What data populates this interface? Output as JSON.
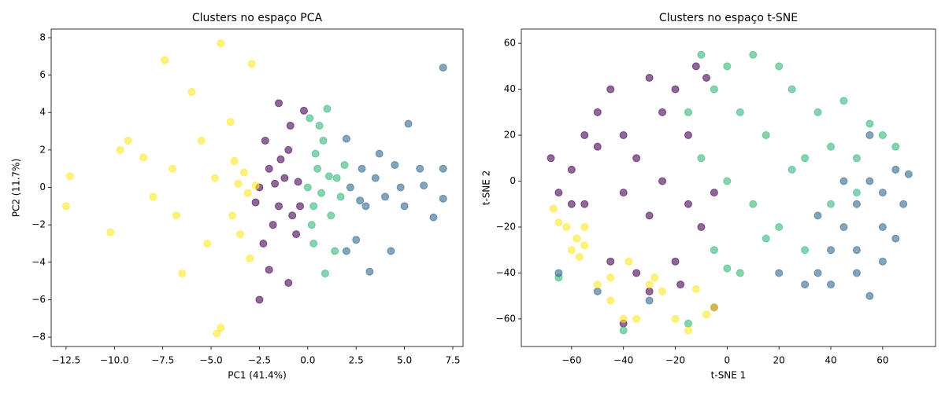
{
  "chart_data": [
    {
      "type": "scatter",
      "title": "Clusters no espaço PCA",
      "xlabel": "PC1 (41.4%)",
      "ylabel": "PC2 (11.7%)",
      "xlim": [
        -13.27,
        8.03
      ],
      "ylim": [
        -8.5,
        8.46
      ],
      "xticks": [
        {
          "value": -12.5,
          "label": "−12.5"
        },
        {
          "value": -10,
          "label": "−10.0"
        },
        {
          "value": -7.5,
          "label": "−7.5"
        },
        {
          "value": -5,
          "label": "−5.0"
        },
        {
          "value": -2.5,
          "label": "−2.5"
        },
        {
          "value": 0,
          "label": "0.0"
        },
        2.5,
        {
          "value": 5,
          "label": "5.0"
        },
        7.5
      ],
      "yticks": [
        {
          "value": -8,
          "label": "−8"
        },
        {
          "value": -6,
          "label": "−6"
        },
        {
          "value": -4,
          "label": "−4"
        },
        {
          "value": -2,
          "label": "−2"
        },
        0,
        2,
        4,
        6,
        8
      ],
      "series": [
        {
          "color": "#440154",
          "x": [
            -2.5,
            -2.5,
            -2,
            -1.5,
            -1.2,
            -1.8,
            -1,
            -0.8,
            -0.5,
            -2.2,
            -1.5,
            -0.2,
            -1,
            -2,
            -0.4,
            -2.7,
            -1.4,
            -0.6,
            -2.3,
            -1.7,
            -0.9
          ],
          "values": [
            -6,
            0,
            1,
            -1,
            0.5,
            -2,
            2,
            -1.5,
            0.3,
            2.5,
            4.5,
            4.1,
            -5.1,
            -4.4,
            -1,
            -0.8,
            1.5,
            -2.5,
            -3,
            0.2,
            3.3
          ]
        },
        {
          "color": "#31688e",
          "x": [
            2.2,
            2.8,
            3,
            3.5,
            4,
            4.5,
            5,
            5.2,
            7,
            7,
            7,
            6.5,
            3.2,
            2,
            2.5,
            4.3,
            5.8,
            3.7,
            2.7,
            4.8,
            6,
            2
          ],
          "values": [
            0,
            1,
            -1,
            0.5,
            -0.5,
            1.2,
            -1,
            3.4,
            6.4,
            1,
            -0.6,
            -1.6,
            -4.5,
            2.6,
            -2.8,
            -3.4,
            1,
            1.8,
            -0.7,
            0,
            0.1,
            -3.4
          ]
        },
        {
          "color": "#35b779",
          "x": [
            0,
            0.5,
            0.3,
            0.8,
            1.2,
            0.2,
            1.5,
            1,
            0.9,
            0.6,
            1.7,
            0.1,
            1.4,
            0.4,
            1.9,
            0.7,
            1.1,
            0.3
          ],
          "values": [
            0,
            1,
            -1,
            2.5,
            -1.5,
            -2,
            0.5,
            4.2,
            -4.6,
            3.3,
            -0.5,
            3.7,
            -3.4,
            1.8,
            1.2,
            -0.3,
            0.6,
            -3
          ]
        },
        {
          "color": "#fde725",
          "x": [
            -12.3,
            -12.5,
            -10.2,
            -9.7,
            -9.3,
            -8.5,
            -7.4,
            -7,
            -6.5,
            -6,
            -5.5,
            -5.2,
            -4.8,
            -4.5,
            -4.5,
            -4.7,
            -4,
            -3.9,
            -3.6,
            -3.3,
            -3.1,
            -3.5,
            -2.9,
            -2.7,
            -3.8,
            -3,
            -6.8,
            -8
          ],
          "values": [
            0.6,
            -1,
            -2.4,
            2,
            2.5,
            1.6,
            6.8,
            1,
            -4.6,
            5.1,
            2.5,
            -3,
            0.5,
            7.7,
            -7.5,
            -7.8,
            3.5,
            -1.5,
            0.2,
            0.8,
            -0.3,
            -2.5,
            6.6,
            0.1,
            1.4,
            -3.8,
            -1.5,
            -0.5
          ]
        }
      ]
    },
    {
      "type": "scatter",
      "title": "Clusters no espaço t-SNE",
      "xlabel": "t-SNE 1",
      "ylabel": "t-SNE 2",
      "xlim": [
        -79.4,
        80.4
      ],
      "ylim": [
        -72,
        66.2
      ],
      "xticks": [
        {
          "value": -60,
          "label": "−60"
        },
        {
          "value": -40,
          "label": "−40"
        },
        {
          "value": -20,
          "label": "−20"
        },
        0,
        20,
        40,
        60
      ],
      "yticks": [
        {
          "value": -60,
          "label": "−60"
        },
        {
          "value": -40,
          "label": "−40"
        },
        {
          "value": -20,
          "label": "−20"
        },
        0,
        20,
        40,
        60
      ],
      "series": [
        {
          "color": "#440154",
          "x": [
            -68,
            -65,
            -60,
            -55,
            -50,
            -45,
            -40,
            -35,
            -30,
            -25,
            -20,
            -15,
            -12,
            -25,
            -15,
            -10,
            -5,
            -30,
            -40,
            -50,
            -55,
            -20,
            -40,
            -30,
            -45,
            -35,
            -5,
            -18,
            -60,
            -8
          ],
          "values": [
            10,
            -5,
            5,
            -10,
            30,
            40,
            20,
            10,
            45,
            30,
            40,
            20,
            50,
            0,
            -10,
            -20,
            -5,
            -15,
            -5,
            15,
            20,
            -35,
            -62,
            -48,
            -35,
            -40,
            -55,
            -45,
            -10,
            45
          ]
        },
        {
          "color": "#35b779",
          "x": [
            -10,
            0,
            10,
            20,
            25,
            5,
            15,
            30,
            40,
            50,
            60,
            65,
            0,
            10,
            20,
            -5,
            5,
            15,
            30,
            40,
            50,
            -15,
            -10,
            35,
            45,
            -65,
            -15,
            -40,
            0,
            55,
            -5,
            25
          ],
          "values": [
            55,
            50,
            55,
            50,
            40,
            30,
            20,
            10,
            15,
            10,
            20,
            15,
            0,
            -10,
            -20,
            -30,
            -40,
            -25,
            -30,
            -10,
            -5,
            30,
            10,
            30,
            35,
            -42,
            -62,
            -65,
            -38,
            25,
            40,
            5
          ]
        },
        {
          "color": "#31688e",
          "x": [
            30,
            35,
            40,
            45,
            50,
            55,
            60,
            65,
            70,
            50,
            55,
            60,
            65,
            40,
            20,
            50,
            60,
            45,
            55,
            68,
            -50,
            -65,
            -30,
            35
          ],
          "values": [
            -45,
            -40,
            -30,
            -20,
            -10,
            0,
            -5,
            5,
            3,
            -40,
            -50,
            -35,
            -25,
            -45,
            -40,
            -30,
            -20,
            0,
            20,
            -10,
            -48,
            -40,
            -52,
            -15
          ]
        },
        {
          "color": "#fde725",
          "x": [
            -60,
            -58,
            -55,
            -62,
            -57,
            -67,
            -50,
            -45,
            -38,
            -40,
            -30,
            -25,
            -20,
            -15,
            -5,
            -45,
            -35,
            -55,
            -65,
            -28,
            -12,
            -8
          ],
          "values": [
            -30,
            -25,
            -20,
            -20,
            -33,
            -12,
            -45,
            -52,
            -35,
            -60,
            -45,
            -48,
            -60,
            -65,
            -55,
            -42,
            -60,
            -28,
            -18,
            -42,
            -47,
            -58
          ]
        }
      ]
    }
  ]
}
